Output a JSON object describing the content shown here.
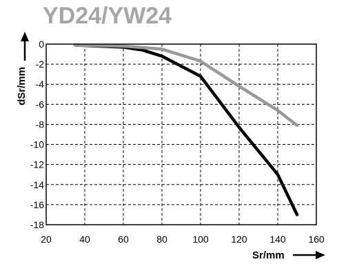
{
  "chart_data": {
    "type": "line",
    "title": "YD24/YW24",
    "xlabel": "Sr/mm",
    "ylabel": "dSr/mm",
    "xlim": [
      20,
      160
    ],
    "ylim": [
      -18,
      0
    ],
    "xticks": [
      20,
      40,
      60,
      80,
      100,
      120,
      140,
      160
    ],
    "yticks": [
      0,
      -2,
      -4,
      -6,
      -8,
      -10,
      -12,
      -14,
      -16,
      -18
    ],
    "xtick_labels": [
      "20",
      "40",
      "60",
      "80",
      "100",
      "120",
      "140",
      "160"
    ],
    "ytick_labels": [
      "0",
      "-2",
      "-4",
      "-6",
      "-8",
      "-10",
      "-12",
      "-14",
      "-16",
      "-18"
    ],
    "grid": true,
    "series": [
      {
        "color": "#000000",
        "x": [
          35,
          60,
          70,
          80,
          100,
          120,
          140,
          150
        ],
        "y": [
          -0.1,
          -0.3,
          -0.6,
          -1.2,
          -3.2,
          -8.3,
          -13.0,
          -17.0
        ]
      },
      {
        "color": "#999999",
        "x": [
          35,
          60,
          80,
          100,
          120,
          140,
          150
        ],
        "y": [
          -0.1,
          -0.2,
          -0.5,
          -1.7,
          -4.2,
          -6.6,
          -8.1
        ]
      }
    ]
  }
}
